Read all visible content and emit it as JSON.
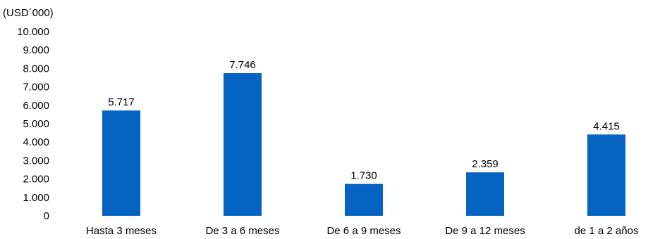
{
  "chart_data": {
    "type": "bar",
    "unit_label": "(USD´000)",
    "categories": [
      "Hasta 3 meses",
      "De 3 a 6 meses",
      "De 6 a 9 meses",
      "De 9 a 12 meses",
      "de 1 a 2 años"
    ],
    "values": [
      5717,
      7746,
      1730,
      2359,
      4415
    ],
    "value_labels": [
      "5.717",
      "7.746",
      "1.730",
      "2.359",
      "4.415"
    ],
    "y_ticks": [
      0,
      1000,
      2000,
      3000,
      4000,
      5000,
      6000,
      7000,
      8000,
      9000,
      10000
    ],
    "y_tick_labels": [
      "0",
      "1.000",
      "2.000",
      "3.000",
      "4.000",
      "5.000",
      "6.000",
      "7.000",
      "8.000",
      "9.000",
      "10.000"
    ],
    "ylim": [
      0,
      10000
    ],
    "grid": false,
    "legend": "none",
    "bar_color": "#0563c1"
  }
}
